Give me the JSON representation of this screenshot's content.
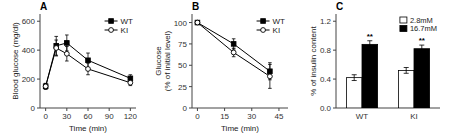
{
  "chart_data": [
    {
      "type": "line",
      "title": "A",
      "x_label": "Time (min)",
      "y_label": "Blood glucose (mg/dl)",
      "x": [
        0,
        15,
        30,
        60,
        120
      ],
      "series": [
        {
          "name": "WT",
          "color": "black",
          "marker": "square",
          "line_style": "solid",
          "values": [
            150,
            430,
            450,
            330,
            205
          ],
          "errors": [
            20,
            65,
            55,
            50,
            25
          ]
        },
        {
          "name": "KI",
          "color": "black",
          "marker": "open-circle",
          "line_style": "solid",
          "values": [
            150,
            415,
            375,
            270,
            175
          ],
          "errors": [
            20,
            55,
            50,
            40,
            20
          ]
        }
      ],
      "xlim": [
        -8,
        128
      ],
      "xticks": [
        0,
        30,
        60,
        90,
        120
      ],
      "ylim": [
        0,
        650
      ],
      "yticks": [
        0,
        200,
        400,
        600
      ],
      "legend": "upper right"
    },
    {
      "type": "line",
      "title": "B",
      "x_label": "Time (min)",
      "y_label": "Glucose\n(% of initial level)",
      "x": [
        0,
        20,
        40
      ],
      "series": [
        {
          "name": "WT",
          "color": "black",
          "marker": "square",
          "line_style": "solid",
          "values": [
            100,
            75,
            43
          ],
          "errors": [
            1,
            6,
            10
          ]
        },
        {
          "name": "KI",
          "color": "black",
          "marker": "open-circle",
          "line_style": "solid",
          "values": [
            100,
            65,
            37
          ],
          "errors": [
            1,
            5,
            14
          ]
        }
      ],
      "xlim": [
        -3,
        50
      ],
      "xticks": [
        0,
        15,
        30,
        45
      ],
      "ylim": [
        0,
        110
      ],
      "yticks": [
        0,
        25,
        50,
        75,
        100
      ],
      "legend": "upper right"
    },
    {
      "type": "bar",
      "title": "C",
      "y_label": "% of insulin content",
      "categories": [
        "WT",
        "KI"
      ],
      "series": [
        {
          "name": "2.8mM",
          "color": "white",
          "values": [
            0.42,
            0.52
          ],
          "errors": [
            0.04,
            0.04
          ]
        },
        {
          "name": "16.7mM",
          "color": "black",
          "values": [
            0.88,
            0.82
          ],
          "errors": [
            0.05,
            0.05
          ]
        }
      ],
      "ylim": [
        0,
        1.3
      ],
      "yticks": [
        {
          "value": 0,
          "label": "0.0"
        },
        0.4,
        0.8,
        1.2
      ],
      "annotations": [
        {
          "text": "**",
          "x": "WT",
          "series": "16.7mM"
        },
        {
          "text": "**",
          "x": "KI",
          "series": "16.7mM"
        }
      ],
      "legend": "upper right"
    }
  ]
}
